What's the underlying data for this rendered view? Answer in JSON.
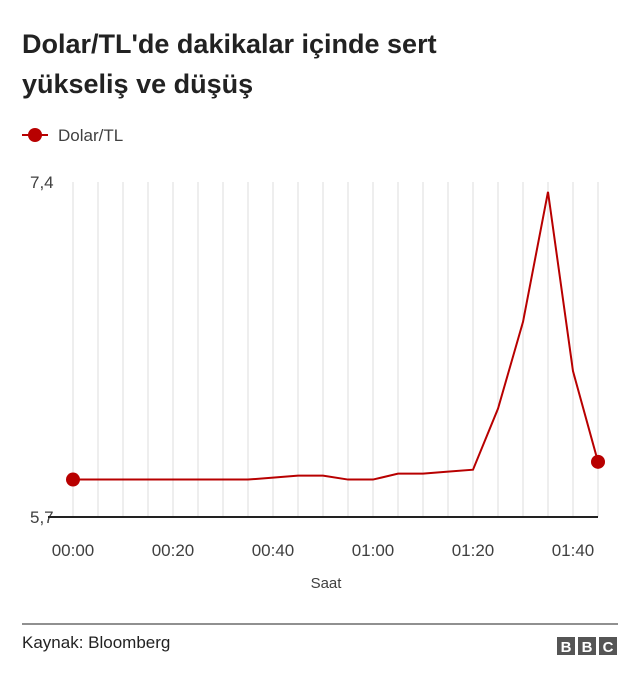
{
  "chart_data": {
    "type": "line",
    "title": "Dolar/TL'de dakikalar içinde sert yükseliş ve düşüş",
    "x_label": "Saat",
    "source": "Kaynak: Bloomberg",
    "logo": [
      "B",
      "B",
      "C"
    ],
    "categories": [
      "00:00",
      null,
      null,
      null,
      "00:20",
      null,
      null,
      null,
      "00:40",
      null,
      null,
      null,
      "01:00",
      null,
      null,
      null,
      "01:20",
      null,
      null,
      null,
      "01:40",
      null
    ],
    "series": [
      {
        "name": "Dolar/TL",
        "color": "#b80000",
        "values": [
          5.89,
          5.89,
          5.89,
          5.89,
          5.89,
          5.89,
          5.89,
          5.89,
          5.9,
          5.91,
          5.91,
          5.89,
          5.89,
          5.92,
          5.92,
          5.93,
          5.94,
          6.25,
          6.69,
          7.35,
          6.44,
          5.98
        ]
      }
    ],
    "ylim": [
      5.7,
      7.4
    ],
    "yticks": [
      {
        "value": 5.7,
        "label": "5,7"
      },
      {
        "value": 7.4,
        "label": "7,4"
      }
    ],
    "grid": true
  }
}
